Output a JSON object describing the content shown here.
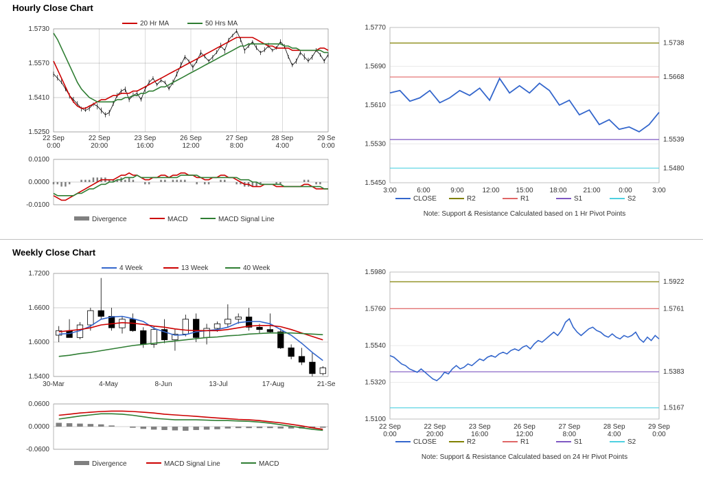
{
  "hourly": {
    "title": "Hourly Close Chart",
    "price": {
      "legend": [
        {
          "label": "20 Hr MA",
          "color": "#cc0000"
        },
        {
          "label": "50 Hrs MA",
          "color": "#2e7d32"
        }
      ],
      "ylim": [
        1.525,
        1.573
      ],
      "yticks": [
        1.525,
        1.541,
        1.557,
        1.573
      ],
      "xticks": [
        "22 Sep 0:00",
        "22 Sep 20:00",
        "23 Sep 16:00",
        "26 Sep 12:00",
        "27 Sep 8:00",
        "28 Sep 4:00",
        "29 Sep 0:00"
      ],
      "grid_color": "#888",
      "background_color": "#ffffff",
      "price_color": "#000000",
      "ma20_color": "#cc0000",
      "ma50_color": "#2e7d32",
      "close": [
        1.552,
        1.55,
        1.548,
        1.545,
        1.542,
        1.54,
        1.538,
        1.536,
        1.535,
        1.536,
        1.538,
        1.537,
        1.535,
        1.533,
        1.534,
        1.538,
        1.542,
        1.544,
        1.545,
        1.54,
        1.542,
        1.543,
        1.54,
        1.545,
        1.548,
        1.55,
        1.547,
        1.549,
        1.548,
        1.545,
        1.548,
        1.552,
        1.556,
        1.56,
        1.558,
        1.555,
        1.558,
        1.562,
        1.56,
        1.558,
        1.56,
        1.562,
        1.565,
        1.563,
        1.568,
        1.57,
        1.572,
        1.568,
        1.563,
        1.565,
        1.567,
        1.564,
        1.562,
        1.563,
        1.565,
        1.563,
        1.564,
        1.567,
        1.565,
        1.56,
        1.556,
        1.558,
        1.562,
        1.56,
        1.558,
        1.56,
        1.563,
        1.561,
        1.558,
        1.561
      ],
      "ma20": [
        1.558,
        1.554,
        1.55,
        1.546,
        1.542,
        1.539,
        1.537,
        1.536,
        1.536,
        1.537,
        1.538,
        1.539,
        1.54,
        1.54,
        1.541,
        1.542,
        1.542,
        1.543,
        1.543,
        1.543,
        1.544,
        1.544,
        1.545,
        1.546,
        1.547,
        1.548,
        1.549,
        1.55,
        1.551,
        1.552,
        1.553,
        1.554,
        1.555,
        1.556,
        1.557,
        1.558,
        1.559,
        1.56,
        1.561,
        1.562,
        1.563,
        1.564,
        1.565,
        1.566,
        1.567,
        1.568,
        1.569,
        1.569,
        1.569,
        1.569,
        1.569,
        1.568,
        1.567,
        1.566,
        1.565,
        1.565,
        1.564,
        1.564,
        1.564,
        1.564,
        1.563,
        1.563,
        1.563,
        1.563,
        1.563,
        1.563,
        1.563,
        1.564,
        1.564,
        1.563
      ],
      "ma50": [
        1.571,
        1.568,
        1.564,
        1.56,
        1.556,
        1.552,
        1.548,
        1.545,
        1.543,
        1.541,
        1.54,
        1.539,
        1.539,
        1.539,
        1.539,
        1.539,
        1.54,
        1.54,
        1.541,
        1.541,
        1.542,
        1.542,
        1.543,
        1.543,
        1.544,
        1.544,
        1.545,
        1.546,
        1.546,
        1.547,
        1.548,
        1.549,
        1.55,
        1.551,
        1.552,
        1.553,
        1.554,
        1.555,
        1.556,
        1.557,
        1.558,
        1.559,
        1.56,
        1.561,
        1.562,
        1.563,
        1.564,
        1.565,
        1.565,
        1.566,
        1.566,
        1.566,
        1.566,
        1.566,
        1.566,
        1.566,
        1.566,
        1.566,
        1.565,
        1.565,
        1.564,
        1.564,
        1.563,
        1.563,
        1.563,
        1.563,
        1.563,
        1.563,
        1.562,
        1.562
      ]
    },
    "macd": {
      "legend": [
        {
          "label": "Divergence",
          "color": "#808080"
        },
        {
          "label": "MACD",
          "color": "#cc0000"
        },
        {
          "label": "MACD Signal Line",
          "color": "#2e7d32"
        }
      ],
      "ylim": [
        -0.01,
        0.01
      ],
      "yticks": [
        -0.01,
        0.0,
        0.01
      ],
      "grid_color": "#888",
      "hist_color": "#808080",
      "macd_color": "#cc0000",
      "signal_color": "#2e7d32",
      "macd_vals": [
        -0.006,
        -0.007,
        -0.008,
        -0.008,
        -0.007,
        -0.006,
        -0.005,
        -0.004,
        -0.003,
        -0.002,
        -0.001,
        0.0,
        0.001,
        0.001,
        0.001,
        0.001,
        0.002,
        0.003,
        0.003,
        0.004,
        0.003,
        0.003,
        0.002,
        0.001,
        0.001,
        0.002,
        0.002,
        0.003,
        0.003,
        0.002,
        0.003,
        0.003,
        0.004,
        0.004,
        0.003,
        0.003,
        0.002,
        0.002,
        0.001,
        0.001,
        0.002,
        0.002,
        0.003,
        0.003,
        0.002,
        0.002,
        0.001,
        0.0,
        -0.001,
        -0.001,
        -0.002,
        -0.002,
        -0.002,
        -0.001,
        -0.001,
        -0.001,
        -0.002,
        -0.002,
        -0.002,
        -0.002,
        -0.002,
        -0.002,
        -0.002,
        -0.001,
        -0.001,
        -0.002,
        -0.003,
        -0.003,
        -0.003,
        -0.003
      ],
      "signal_vals": [
        -0.005,
        -0.006,
        -0.006,
        -0.006,
        -0.006,
        -0.006,
        -0.005,
        -0.005,
        -0.004,
        -0.003,
        -0.003,
        -0.002,
        -0.001,
        -0.001,
        0.0,
        0.0,
        0.001,
        0.001,
        0.002,
        0.002,
        0.002,
        0.003,
        0.002,
        0.002,
        0.002,
        0.002,
        0.002,
        0.002,
        0.002,
        0.002,
        0.002,
        0.002,
        0.003,
        0.003,
        0.003,
        0.003,
        0.003,
        0.002,
        0.002,
        0.002,
        0.002,
        0.002,
        0.002,
        0.002,
        0.002,
        0.002,
        0.002,
        0.001,
        0.001,
        0.001,
        0.0,
        0.0,
        -0.001,
        -0.001,
        -0.001,
        -0.001,
        -0.001,
        -0.001,
        -0.002,
        -0.002,
        -0.002,
        -0.002,
        -0.002,
        -0.002,
        -0.002,
        -0.002,
        -0.002,
        -0.002,
        -0.003,
        -0.003
      ],
      "hist_vals": [
        -0.001,
        -0.001,
        -0.002,
        -0.002,
        -0.001,
        0.0,
        0.0,
        0.001,
        0.001,
        0.001,
        0.002,
        0.002,
        0.002,
        0.002,
        0.001,
        0.001,
        0.001,
        0.002,
        0.001,
        0.002,
        0.001,
        0.0,
        0.0,
        -0.001,
        -0.001,
        0.0,
        0.0,
        0.001,
        0.001,
        0.0,
        0.001,
        0.001,
        0.001,
        0.001,
        0.0,
        0.0,
        -0.001,
        0.0,
        -0.001,
        -0.001,
        0.0,
        0.0,
        0.001,
        0.001,
        0.0,
        0.0,
        -0.001,
        -0.001,
        -0.002,
        -0.002,
        -0.002,
        -0.002,
        -0.001,
        0.0,
        0.0,
        0.0,
        -0.001,
        -0.001,
        0.0,
        0.0,
        0.0,
        0.0,
        0.0,
        0.001,
        0.001,
        0.0,
        -0.001,
        -0.001,
        0.0,
        0.0
      ]
    },
    "pivots": {
      "ylim": [
        1.545,
        1.577
      ],
      "yticks": [
        1.545,
        1.553,
        1.561,
        1.569,
        1.577
      ],
      "xticks": [
        "3:00",
        "6:00",
        "9:00",
        "12:00",
        "15:00",
        "18:00",
        "21:00",
        "0:00",
        "3:00"
      ],
      "legend": [
        {
          "label": "CLOSE",
          "color": "#3366cc"
        },
        {
          "label": "R2",
          "color": "#808000"
        },
        {
          "label": "R1",
          "color": "#e06666"
        },
        {
          "label": "S1",
          "color": "#7e57c2"
        },
        {
          "label": "S2",
          "color": "#4dd0e1"
        }
      ],
      "note": "Note: Support & Resistance Calculated based on 1 Hr Pivot Points",
      "lines": {
        "R2": 1.5738,
        "R1": 1.5668,
        "S1": 1.5539,
        "S2": 1.548
      },
      "close": [
        1.5635,
        1.564,
        1.5618,
        1.5625,
        1.564,
        1.5615,
        1.5625,
        1.564,
        1.563,
        1.5645,
        1.562,
        1.5665,
        1.5635,
        1.565,
        1.5635,
        1.5655,
        1.564,
        1.561,
        1.562,
        1.559,
        1.56,
        1.557,
        1.558,
        1.556,
        1.5565,
        1.5555,
        1.557,
        1.5595
      ],
      "close_color": "#3366cc"
    }
  },
  "weekly": {
    "title": "Weekly Close Chart",
    "price": {
      "legend": [
        {
          "label": "4 Week",
          "color": "#3366cc"
        },
        {
          "label": "13 Week",
          "color": "#cc0000"
        },
        {
          "label": "40 Week",
          "color": "#2e7d32"
        }
      ],
      "ylim": [
        1.54,
        1.72
      ],
      "yticks": [
        1.54,
        1.6,
        1.66,
        1.72
      ],
      "xticks": [
        "30-Mar",
        "4-May",
        "8-Jun",
        "13-Jul",
        "17-Aug",
        "21-Sep"
      ],
      "grid_color": "#888",
      "candle_border": "#000",
      "candle_up": "#ffffff",
      "candle_down": "#000000",
      "w4_color": "#3366cc",
      "w13_color": "#cc0000",
      "w40_color": "#2e7d32",
      "candles": [
        {
          "o": 1.612,
          "h": 1.628,
          "l": 1.6,
          "c": 1.62
        },
        {
          "o": 1.62,
          "h": 1.64,
          "l": 1.612,
          "c": 1.608
        },
        {
          "o": 1.608,
          "h": 1.635,
          "l": 1.605,
          "c": 1.63
        },
        {
          "o": 1.63,
          "h": 1.66,
          "l": 1.62,
          "c": 1.655
        },
        {
          "o": 1.655,
          "h": 1.712,
          "l": 1.64,
          "c": 1.645
        },
        {
          "o": 1.645,
          "h": 1.66,
          "l": 1.62,
          "c": 1.625
        },
        {
          "o": 1.625,
          "h": 1.645,
          "l": 1.615,
          "c": 1.64
        },
        {
          "o": 1.64,
          "h": 1.65,
          "l": 1.618,
          "c": 1.62
        },
        {
          "o": 1.62,
          "h": 1.626,
          "l": 1.59,
          "c": 1.596
        },
        {
          "o": 1.596,
          "h": 1.628,
          "l": 1.59,
          "c": 1.622
        },
        {
          "o": 1.622,
          "h": 1.64,
          "l": 1.598,
          "c": 1.604
        },
        {
          "o": 1.604,
          "h": 1.622,
          "l": 1.585,
          "c": 1.614
        },
        {
          "o": 1.614,
          "h": 1.648,
          "l": 1.61,
          "c": 1.64
        },
        {
          "o": 1.64,
          "h": 1.65,
          "l": 1.6,
          "c": 1.608
        },
        {
          "o": 1.608,
          "h": 1.632,
          "l": 1.596,
          "c": 1.624
        },
        {
          "o": 1.624,
          "h": 1.636,
          "l": 1.618,
          "c": 1.632
        },
        {
          "o": 1.632,
          "h": 1.666,
          "l": 1.625,
          "c": 1.64
        },
        {
          "o": 1.64,
          "h": 1.65,
          "l": 1.632,
          "c": 1.644
        },
        {
          "o": 1.644,
          "h": 1.66,
          "l": 1.62,
          "c": 1.626
        },
        {
          "o": 1.626,
          "h": 1.632,
          "l": 1.615,
          "c": 1.622
        },
        {
          "o": 1.622,
          "h": 1.65,
          "l": 1.616,
          "c": 1.618
        },
        {
          "o": 1.618,
          "h": 1.624,
          "l": 1.588,
          "c": 1.59
        },
        {
          "o": 1.59,
          "h": 1.596,
          "l": 1.57,
          "c": 1.575
        },
        {
          "o": 1.575,
          "h": 1.59,
          "l": 1.56,
          "c": 1.565
        },
        {
          "o": 1.565,
          "h": 1.582,
          "l": 1.54,
          "c": 1.545
        },
        {
          "o": 1.545,
          "h": 1.558,
          "l": 1.542,
          "c": 1.555
        }
      ],
      "w4": [
        1.614,
        1.615,
        1.62,
        1.628,
        1.64,
        1.644,
        1.645,
        1.641,
        1.636,
        1.624,
        1.618,
        1.612,
        1.613,
        1.618,
        1.62,
        1.622,
        1.626,
        1.634,
        1.636,
        1.636,
        1.632,
        1.622,
        1.612,
        1.598,
        1.582,
        1.568
      ],
      "w13": [
        1.618,
        1.62,
        1.622,
        1.625,
        1.63,
        1.632,
        1.634,
        1.633,
        1.631,
        1.628,
        1.626,
        1.623,
        1.621,
        1.62,
        1.62,
        1.62,
        1.622,
        1.625,
        1.628,
        1.629,
        1.629,
        1.627,
        1.622,
        1.616,
        1.61,
        1.604
      ],
      "w40": [
        1.575,
        1.577,
        1.58,
        1.582,
        1.585,
        1.588,
        1.591,
        1.594,
        1.596,
        1.598,
        1.6,
        1.602,
        1.604,
        1.606,
        1.608,
        1.609,
        1.611,
        1.612,
        1.614,
        1.615,
        1.616,
        1.616,
        1.616,
        1.615,
        1.614,
        1.613
      ]
    },
    "macd": {
      "legend": [
        {
          "label": "Divergence",
          "color": "#808080"
        },
        {
          "label": "MACD Signal Line",
          "color": "#cc0000"
        },
        {
          "label": "MACD",
          "color": "#2e7d32"
        }
      ],
      "ylim": [
        -0.06,
        0.06
      ],
      "yticks": [
        -0.06,
        0.0,
        0.06
      ],
      "grid_color": "#888",
      "hist_color": "#808080",
      "macd_color": "#2e7d32",
      "signal_color": "#cc0000",
      "signal_vals": [
        0.03,
        0.033,
        0.036,
        0.038,
        0.04,
        0.041,
        0.041,
        0.04,
        0.038,
        0.036,
        0.033,
        0.031,
        0.029,
        0.027,
        0.025,
        0.023,
        0.021,
        0.019,
        0.018,
        0.016,
        0.013,
        0.01,
        0.006,
        0.002,
        -0.003,
        -0.007
      ],
      "macd_vals": [
        0.02,
        0.024,
        0.028,
        0.031,
        0.034,
        0.034,
        0.033,
        0.03,
        0.026,
        0.022,
        0.02,
        0.018,
        0.018,
        0.018,
        0.017,
        0.016,
        0.016,
        0.015,
        0.014,
        0.012,
        0.009,
        0.005,
        0.001,
        -0.003,
        -0.007,
        -0.01
      ],
      "hist_vals": [
        0.01,
        0.009,
        0.008,
        0.007,
        0.006,
        0.003,
        0.0,
        -0.003,
        -0.006,
        -0.008,
        -0.009,
        -0.01,
        -0.011,
        -0.009,
        -0.008,
        -0.007,
        -0.005,
        -0.004,
        -0.004,
        -0.004,
        -0.004,
        -0.005,
        -0.005,
        -0.005,
        -0.004,
        -0.003
      ]
    },
    "pivots": {
      "ylim": [
        1.51,
        1.598
      ],
      "yticks": [
        1.51,
        1.532,
        1.554,
        1.576,
        1.598
      ],
      "xticks": [
        "22 Sep 0:00",
        "22 Sep 20:00",
        "23 Sep 16:00",
        "26 Sep 12:00",
        "27 Sep 8:00",
        "28 Sep 4:00",
        "29 Sep 0:00"
      ],
      "legend": [
        {
          "label": "CLOSE",
          "color": "#3366cc"
        },
        {
          "label": "R2",
          "color": "#808000"
        },
        {
          "label": "R1",
          "color": "#e06666"
        },
        {
          "label": "S1",
          "color": "#7e57c2"
        },
        {
          "label": "S2",
          "color": "#4dd0e1"
        }
      ],
      "note": "Note: Support & Resistance Calculated based on 24 Hr Pivot Points",
      "lines": {
        "R2": 1.5922,
        "R1": 1.5761,
        "S1": 1.5383,
        "S2": 1.5167
      },
      "close": [
        1.548,
        1.547,
        1.545,
        1.543,
        1.542,
        1.54,
        1.539,
        1.538,
        1.54,
        1.538,
        1.536,
        1.534,
        1.533,
        1.535,
        1.538,
        1.537,
        1.54,
        1.542,
        1.54,
        1.541,
        1.543,
        1.542,
        1.544,
        1.546,
        1.545,
        1.547,
        1.548,
        1.547,
        1.549,
        1.55,
        1.549,
        1.551,
        1.552,
        1.551,
        1.553,
        1.554,
        1.552,
        1.555,
        1.557,
        1.556,
        1.558,
        1.56,
        1.562,
        1.56,
        1.563,
        1.568,
        1.57,
        1.565,
        1.562,
        1.56,
        1.562,
        1.564,
        1.565,
        1.563,
        1.562,
        1.56,
        1.559,
        1.561,
        1.559,
        1.558,
        1.56,
        1.559,
        1.56,
        1.562,
        1.558,
        1.556,
        1.559,
        1.557,
        1.56,
        1.558
      ],
      "close_color": "#3366cc"
    }
  }
}
